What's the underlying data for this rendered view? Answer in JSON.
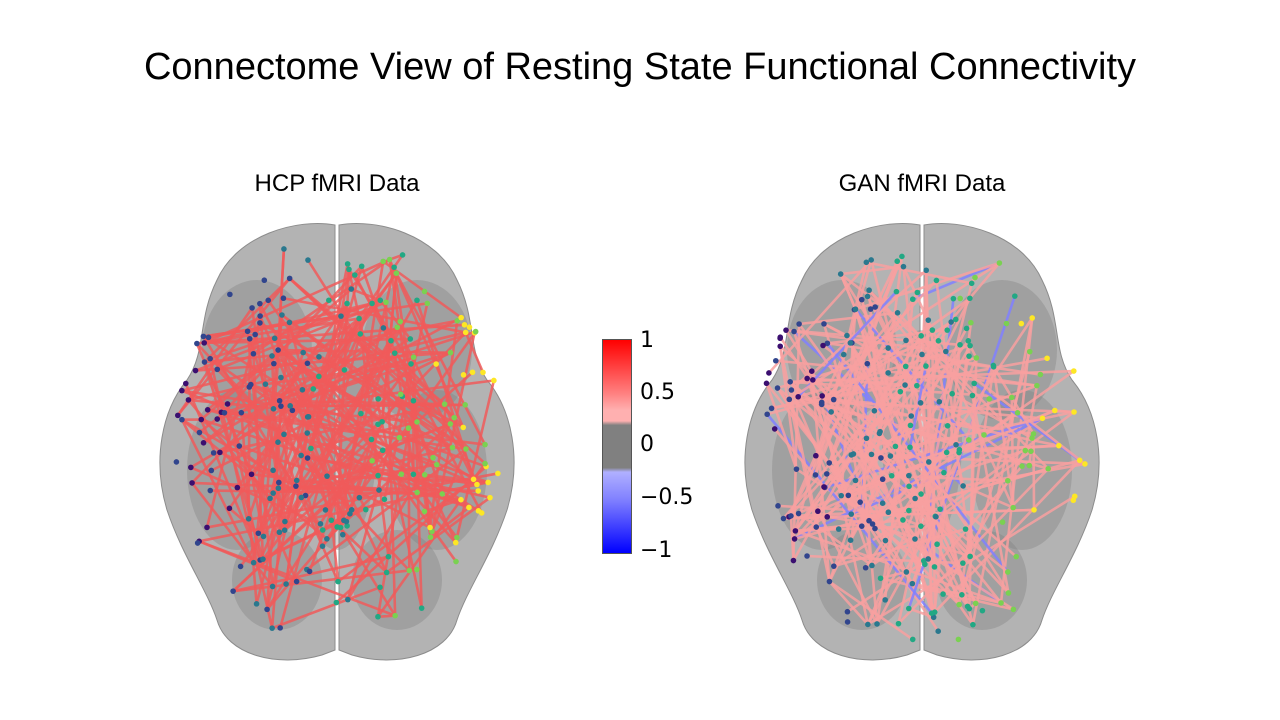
{
  "title": "Connectome View of Resting State Functional Connectivity",
  "panels": [
    {
      "title": "HCP fMRI Data"
    },
    {
      "title": "GAN fMRI Data"
    }
  ],
  "colorbar": {
    "ticks": [
      "1",
      "0.5",
      "0",
      "−0.5",
      "−1"
    ],
    "tick_values": [
      1,
      0.5,
      0,
      -0.5,
      -1
    ],
    "colors": {
      "max": "#ff0000",
      "high": "#ff9a9a",
      "mid": "#808080",
      "low": "#9a9aff",
      "min": "#0000ff"
    }
  },
  "colors": {
    "brain": "#a6a6a6",
    "edge_hcp": "#f05a5a",
    "edge_gan": "#f8a0a0",
    "edge_negative": "#8080ff"
  }
}
